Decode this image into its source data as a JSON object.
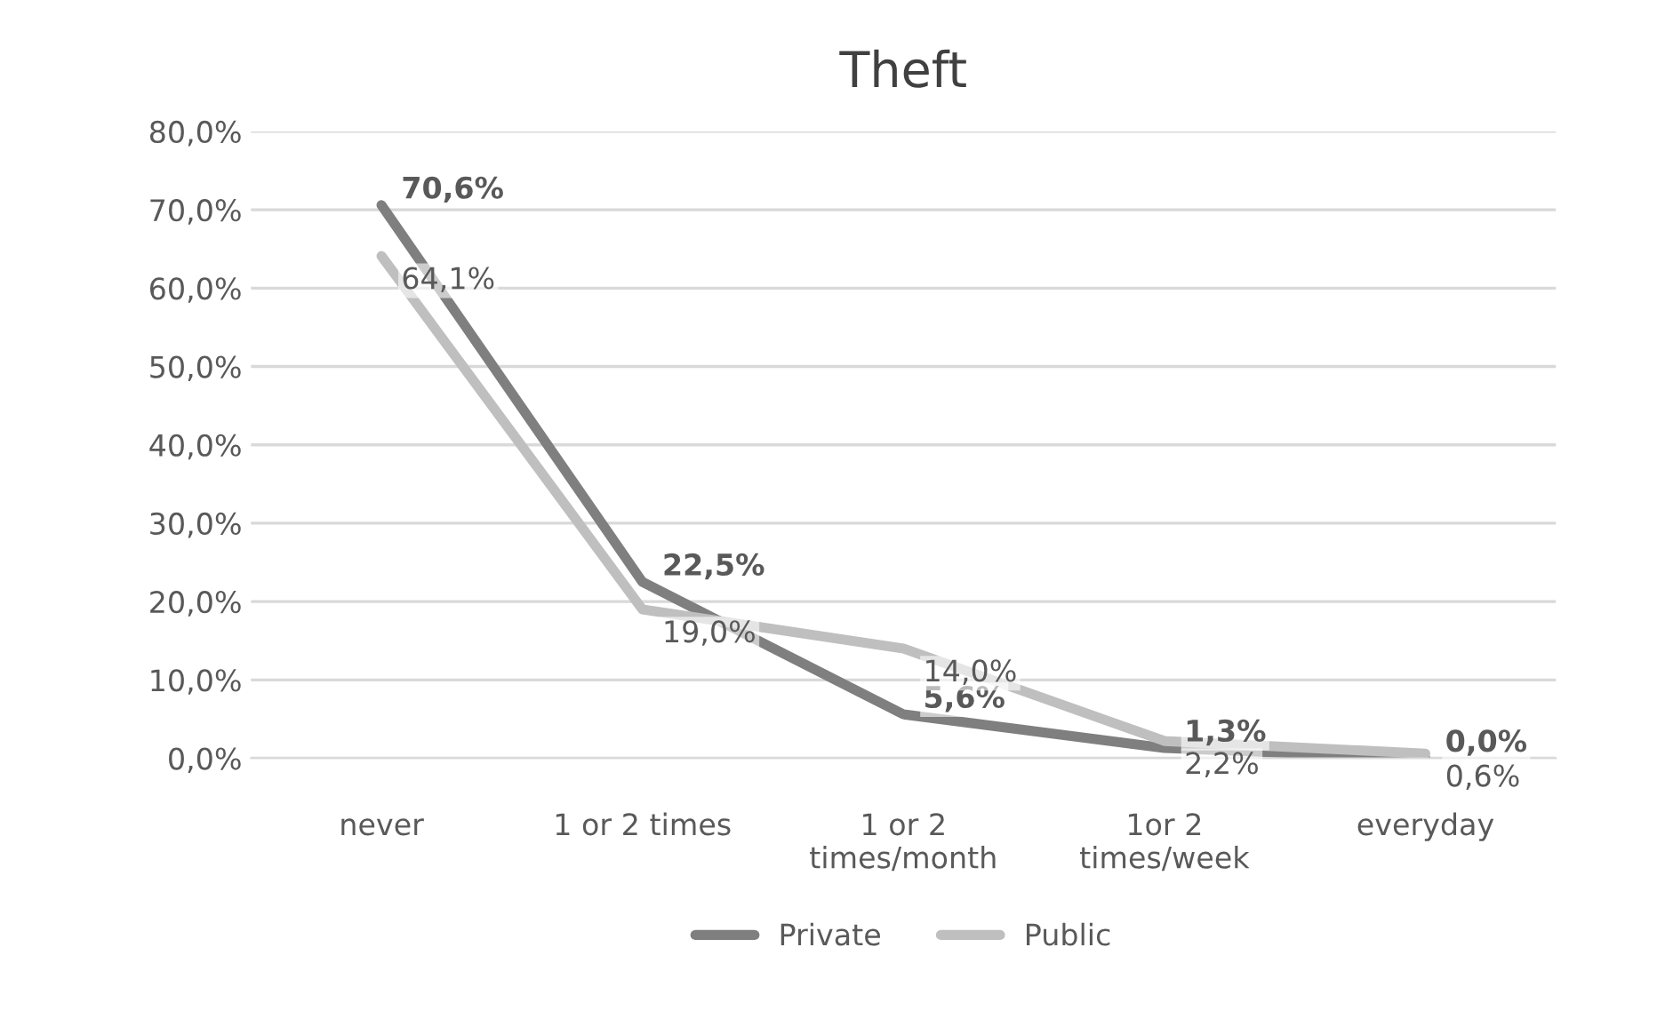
{
  "chart_data": {
    "type": "line",
    "title": "Theft",
    "categories": [
      "never",
      "1 or 2 times",
      "1 or 2\ntimes/month",
      "1or 2\ntimes/week",
      "everyday"
    ],
    "series": [
      {
        "name": "Private",
        "color": "#7f7f7f",
        "values": [
          70.6,
          22.5,
          5.6,
          1.3,
          0.0
        ],
        "value_labels": [
          "70,6%",
          "22,5%",
          "5,6%",
          "1,3%",
          "0,0%"
        ]
      },
      {
        "name": "Public",
        "color": "#bfbfbf",
        "values": [
          64.1,
          19.0,
          14.0,
          2.2,
          0.6
        ],
        "value_labels": [
          "64,1%",
          "19,0%",
          "14,0%",
          "2,2%",
          "0,6%"
        ]
      }
    ],
    "ylim": [
      0,
      80
    ],
    "yticks": [
      {
        "value": 0,
        "label": "0,0%"
      },
      {
        "value": 10,
        "label": "10,0%"
      },
      {
        "value": 20,
        "label": "20,0%"
      },
      {
        "value": 30,
        "label": "30,0%"
      },
      {
        "value": 40,
        "label": "40,0%"
      },
      {
        "value": 50,
        "label": "50,0%"
      },
      {
        "value": 60,
        "label": "60,0%"
      },
      {
        "value": 70,
        "label": "70,0%"
      },
      {
        "value": 80,
        "label": "80,0%"
      }
    ],
    "grid": "y",
    "legend": "bottom",
    "marker": "none",
    "line_style": "solid"
  }
}
